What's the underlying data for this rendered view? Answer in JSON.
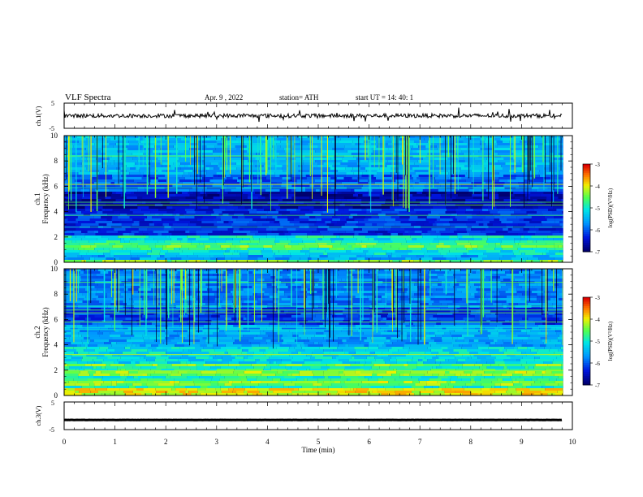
{
  "header": {
    "title": "VLF  Spectra",
    "date": "Apr. 9  , 2022",
    "station": "station= ATH",
    "start": "start  UT  =    14: 40: 1"
  },
  "colors": {
    "spectrogram_bg": "#000a70",
    "axis": "#000000",
    "trace": "#000000"
  },
  "chart_data": [
    {
      "id": "ch1-waveform",
      "type": "line",
      "ylabel": "ch.1(V)",
      "ylim": [
        -5,
        5
      ],
      "yticks": [
        "5",
        "-5"
      ],
      "x_range_min": [
        0,
        9.8
      ],
      "description_level_V": 0
    },
    {
      "id": "ch1-spectrogram",
      "type": "heatmap",
      "ylabel_line1": "ch.1",
      "ylabel_line2": "Frequency  (kHz)",
      "ylim": [
        0,
        10
      ],
      "yticks": [
        "0",
        "2",
        "4",
        "6",
        "8",
        "10"
      ],
      "colorbar": {
        "label": "log(PSD)(V²/Hz)",
        "range": [
          -7,
          -3
        ],
        "ticks": [
          "-3",
          "-4",
          "-5",
          "-6",
          "-7"
        ]
      }
    },
    {
      "id": "ch2-spectrogram",
      "type": "heatmap",
      "ylabel_line1": "ch.2",
      "ylabel_line2": "Frequency  (kHz)",
      "ylim": [
        0,
        10
      ],
      "yticks": [
        "0",
        "2",
        "4",
        "6",
        "8",
        "10"
      ],
      "colorbar": {
        "label": "log(PSD)(V²/Hz)",
        "range": [
          -7,
          -3
        ],
        "ticks": [
          "-3",
          "-4",
          "-5",
          "-6",
          "-7"
        ]
      }
    },
    {
      "id": "ch3-waveform",
      "type": "line",
      "ylabel": "ch.3(V)",
      "ylim": [
        -5,
        5
      ],
      "yticks": [
        "5",
        "-5"
      ],
      "x_range_min": [
        0,
        9.8
      ],
      "description_level_V": -1.5
    }
  ],
  "xaxis": {
    "label": "Time  (min)",
    "range": [
      0,
      10
    ],
    "ticks": [
      "0",
      "1",
      "2",
      "3",
      "4",
      "5",
      "6",
      "7",
      "8",
      "9",
      "10"
    ]
  }
}
